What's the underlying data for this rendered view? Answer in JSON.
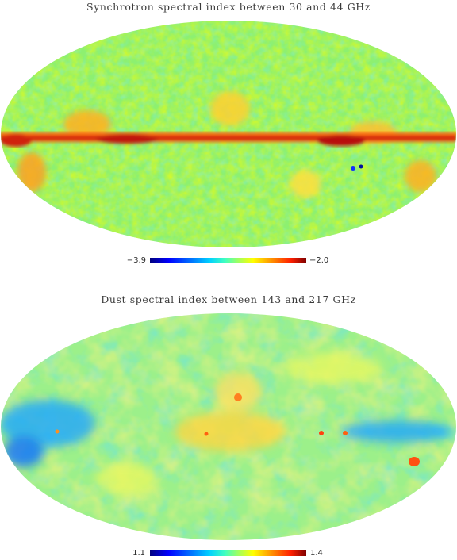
{
  "maps": [
    {
      "title": "Synchrotron spectral index between 30 and 44 GHz",
      "colorbar": {
        "min_label": "−3.9",
        "max_label": "−2.0"
      }
    },
    {
      "title": "Dust spectral index between 143 and 217 GHz",
      "colorbar": {
        "min_label": "1.1",
        "max_label": "1.4"
      }
    }
  ],
  "colors": {
    "top_background": "#8df070",
    "top_plane": "#e0401a",
    "bottom_background": "#9cf08a",
    "bottom_cool": "#1aa6ff",
    "bottom_warm": "#ffd640"
  }
}
